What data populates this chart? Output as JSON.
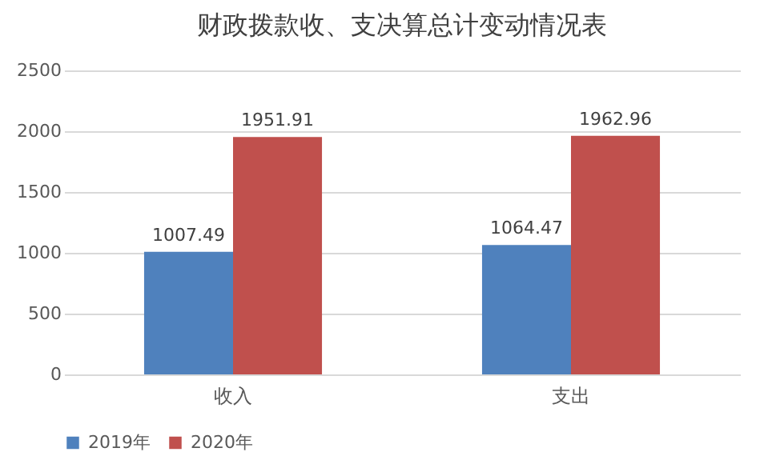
{
  "chart_data": {
    "type": "bar",
    "title": "财政拨款收、支决算总计变动情况表",
    "categories": [
      "收入",
      "支出"
    ],
    "series": [
      {
        "name": "2019年",
        "color": "#4f81bd",
        "values": [
          1007.49,
          1064.47
        ]
      },
      {
        "name": "2020年",
        "color": "#c0504d",
        "values": [
          1951.91,
          1962.96
        ]
      }
    ],
    "ylim": [
      0,
      2500
    ],
    "yticks": [
      0,
      500,
      1000,
      1500,
      2000,
      2500
    ],
    "grid": "y",
    "legend": "bottom",
    "data_labels": true
  }
}
